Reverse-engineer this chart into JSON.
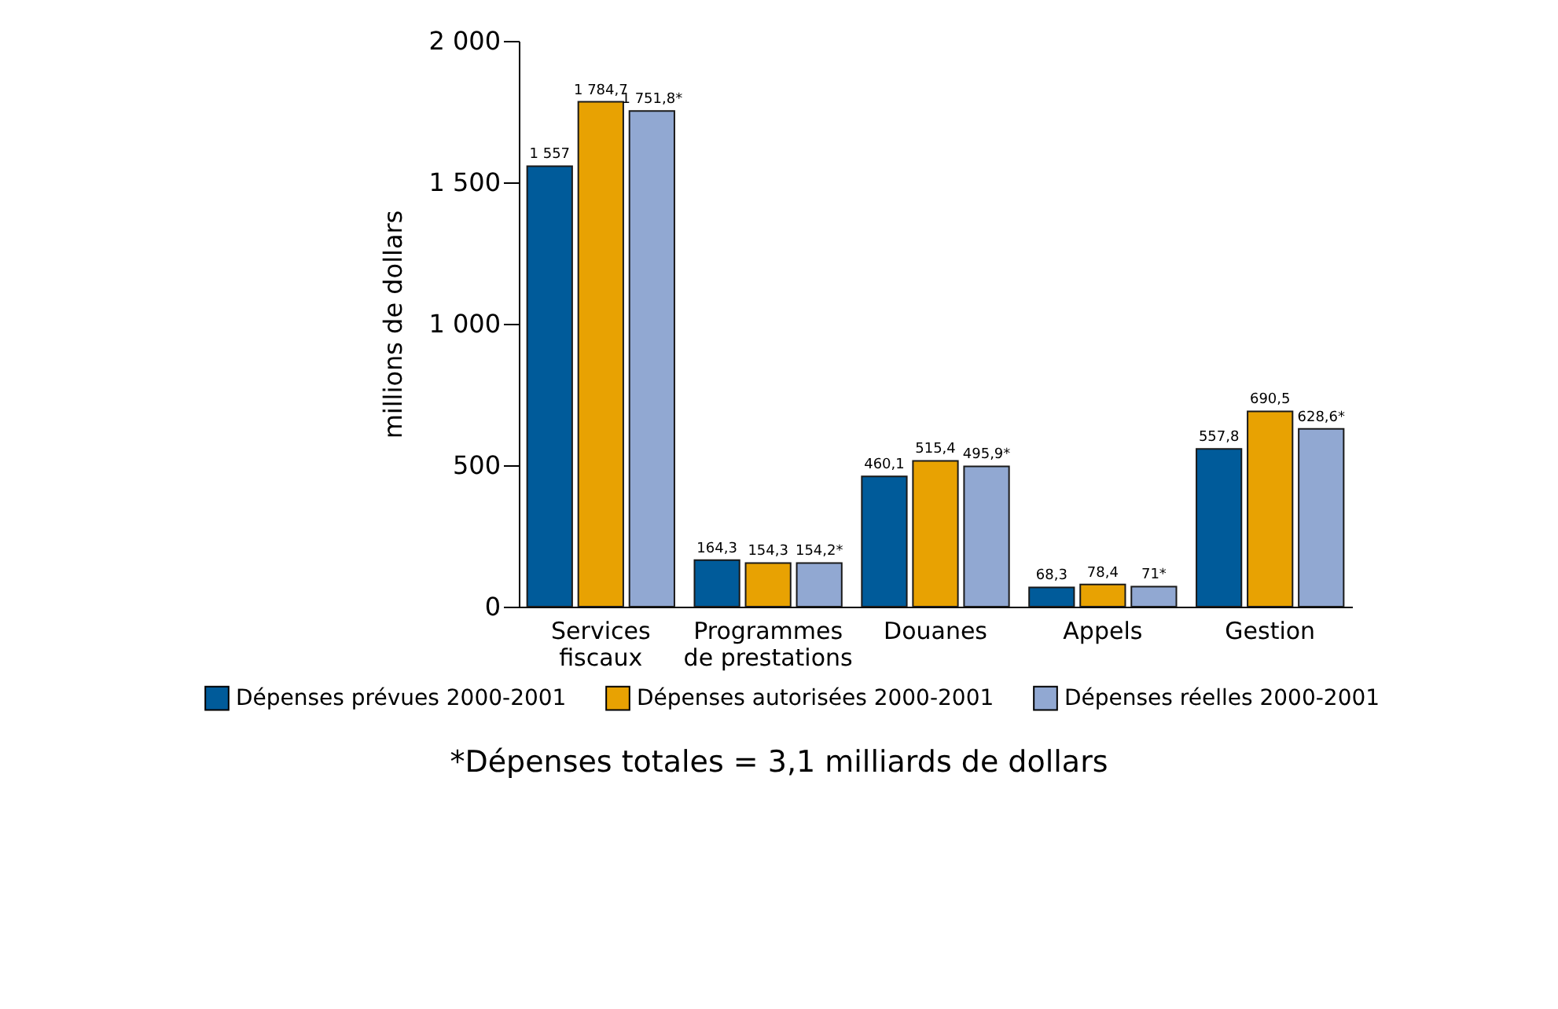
{
  "chart_data": {
    "type": "bar",
    "ylabel": "millions de dollars",
    "categories": [
      "Services fiscaux",
      "Programmes de prestations",
      "Douanes",
      "Appels",
      "Gestion"
    ],
    "series": [
      {
        "name": "Dépenses prévues 2000-2001",
        "color": "#005b9a",
        "values": [
          1557,
          164.3,
          460.1,
          68.3,
          557.8
        ],
        "value_labels": [
          "1 557",
          "164,3",
          "460,1",
          "68,3",
          "557,8"
        ]
      },
      {
        "name": "Dépenses autorisées 2000-2001",
        "color": "#e8a202",
        "values": [
          1784.7,
          154.3,
          515.4,
          78.4,
          690.5
        ],
        "value_labels": [
          "1 784,7",
          "154,3",
          "515,4",
          "78,4",
          "690,5"
        ]
      },
      {
        "name": "Dépenses réelles 2000-2001",
        "color": "#91a8d2",
        "values": [
          1751.8,
          154.2,
          495.9,
          71,
          628.6
        ],
        "value_labels": [
          "1 751,8*",
          "154,2*",
          "495,9*",
          "71*",
          "628,6*"
        ]
      }
    ],
    "ylim": [
      0,
      2000
    ],
    "yticks": [
      0,
      500,
      {
        "value": 1000,
        "label": "1 000"
      },
      {
        "value": 1500,
        "label": "1 500"
      },
      {
        "value": 2000,
        "label": "2 000"
      }
    ],
    "grid": false,
    "legend": "bottom",
    "annotations": [
      "*Dépenses totales = 3,1 milliards de dollars"
    ]
  }
}
